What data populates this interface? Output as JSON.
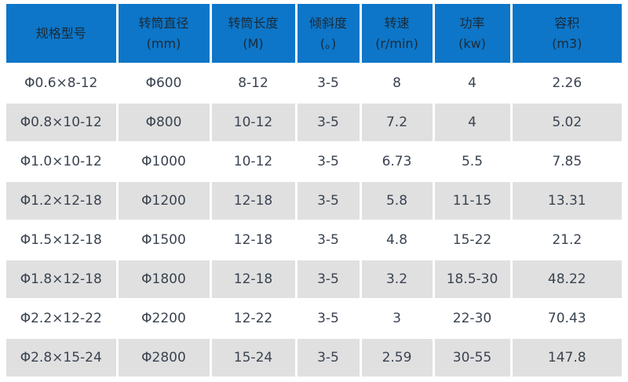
{
  "chart_data": {
    "type": "table",
    "title": "",
    "columns": [
      {
        "label": "规格型号",
        "unit": ""
      },
      {
        "label": "转筒直径",
        "unit": "(mm)"
      },
      {
        "label": "转筒长度",
        "unit": "(M)"
      },
      {
        "label": "倾斜度",
        "unit": "(。)"
      },
      {
        "label": "转速",
        "unit": "(r/min)"
      },
      {
        "label": "功率",
        "unit": "(kw)"
      },
      {
        "label": "容积",
        "unit": "(m3)"
      }
    ],
    "rows": [
      [
        "Φ0.6×8-12",
        "Φ600",
        "8-12",
        "3-5",
        "8",
        "4",
        "2.26"
      ],
      [
        "Φ0.8×10-12",
        "Φ800",
        "10-12",
        "3-5",
        "7.2",
        "4",
        "5.02"
      ],
      [
        "Φ1.0×10-12",
        "Φ1000",
        "10-12",
        "3-5",
        "6.73",
        "5.5",
        "7.85"
      ],
      [
        "Φ1.2×12-18",
        "Φ1200",
        "12-18",
        "3-5",
        "5.8",
        "11-15",
        "13.31"
      ],
      [
        "Φ1.5×12-18",
        "Φ1500",
        "12-18",
        "3-5",
        "4.8",
        "15-22",
        "21.2"
      ],
      [
        "Φ1.8×12-18",
        "Φ1800",
        "12-18",
        "3-5",
        "3.2",
        "18.5-30",
        "48.22"
      ],
      [
        "Φ2.2×12-22",
        "Φ2200",
        "12-22",
        "3-5",
        "3",
        "22-30",
        "70.43"
      ],
      [
        "Φ2.8×15-24",
        "Φ2800",
        "15-24",
        "3-5",
        "2.59",
        "30-55",
        "147.8"
      ]
    ],
    "colors": {
      "header_bg": "#0d76c8",
      "header_text": "#1b2a37",
      "body_text": "#3a4350",
      "alt_row_bg": "#e0e0e0",
      "row_bg": "#ffffff",
      "separator": "#ffffff"
    }
  }
}
